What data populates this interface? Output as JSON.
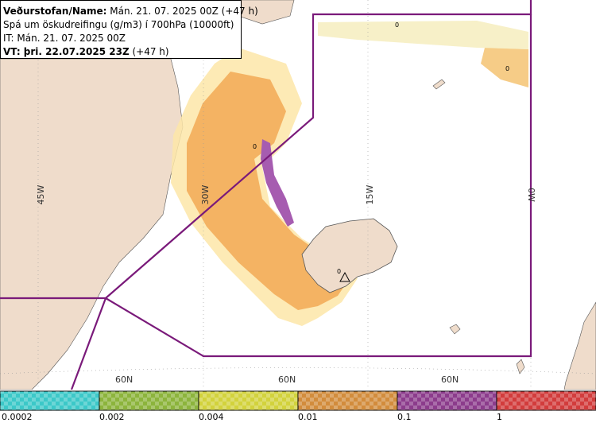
{
  "header": {
    "line1_bold": "Veðurstofan/Name:",
    "line1_rest": " Mán. 21. 07. 2025 00Z (+47 h)",
    "line2": "Spá um öskudreifingu (g/m3) í 700hPa (10000ft)",
    "line3": "IT: Mán. 21. 07. 2025 00Z",
    "line4_bold": "VT: þri. 22.07.2025 23Z",
    "line4_rest": " (+47 h)"
  },
  "grid": {
    "lon_labels": [
      "45W",
      "30W",
      "15W",
      "0W"
    ],
    "lat_labels": [
      "60N",
      "60N",
      "60N"
    ]
  },
  "contour_labels": [
    "0",
    "0",
    "0",
    "0"
  ],
  "legend": {
    "values": [
      "0.0002",
      "0.002",
      "0.004",
      "0.01",
      "0.1",
      "1"
    ],
    "colors": [
      "#3cc8c8",
      "#8cb43c",
      "#d2d23c",
      "#d28c3c",
      "#8c3c8c",
      "#d23c3c"
    ]
  },
  "colors": {
    "land": "#efdccb",
    "sea": "#ffffff",
    "boundary": "#7a1a7a",
    "ash_light": "#f5c67a",
    "ash_mid": "#f3ad5a",
    "ash_dense": "#a65cb0"
  }
}
